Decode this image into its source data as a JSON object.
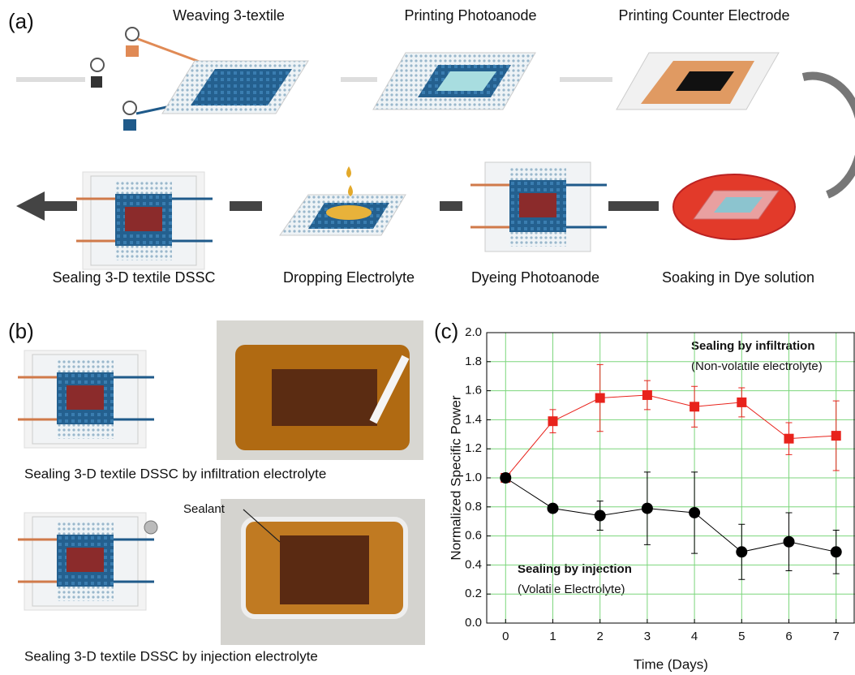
{
  "panels": {
    "a": "(a)",
    "b": "(b)",
    "c": "(c)"
  },
  "steps": [
    "Weaving 3-textile",
    "Printing Photoanode",
    "Printing Counter Electrode",
    "Soaking in Dye solution",
    "Dyeing Photoanode",
    "Dropping Electrolyte",
    "Sealing 3-D textile DSSC"
  ],
  "panel_b": {
    "captions": [
      "Sealing 3-D textile DSSC by infiltration electrolyte",
      "Sealing 3-D textile DSSC by injection electrolyte"
    ],
    "sealant": "Sealant"
  },
  "chart_data": {
    "type": "line",
    "xlabel": "Time (Days)",
    "ylabel": "Normalized Specific Power",
    "x": [
      0,
      1,
      2,
      3,
      4,
      5,
      6,
      7
    ],
    "xlim": [
      -0.4,
      7.4
    ],
    "xticks": [
      0,
      1,
      2,
      3,
      4,
      5,
      6,
      7
    ],
    "ylim": [
      0,
      2
    ],
    "yticks": [
      {
        "value": 0,
        "label": "0.0"
      },
      {
        "value": 0.2,
        "label": "0.2"
      },
      {
        "value": 0.4,
        "label": "0.4"
      },
      {
        "value": 0.6,
        "label": "0.6"
      },
      {
        "value": 0.8,
        "label": "0.8"
      },
      {
        "value": 1,
        "label": "1.0"
      },
      {
        "value": 1.2,
        "label": "1.2"
      },
      {
        "value": 1.4,
        "label": "1.4"
      },
      {
        "value": 1.6,
        "label": "1.6"
      },
      {
        "value": 1.8,
        "label": "1.8"
      },
      {
        "value": 2,
        "label": "2.0"
      }
    ],
    "grid": true,
    "grid_color": "#7cd67c",
    "series": [
      {
        "name": "Sealing by infiltration",
        "color": "#e8231c",
        "marker": "square",
        "values": [
          1.0,
          1.39,
          1.55,
          1.57,
          1.49,
          1.52,
          1.27,
          1.29
        ],
        "errors": [
          0.01,
          0.08,
          0.23,
          0.1,
          0.14,
          0.1,
          0.11,
          0.24
        ]
      },
      {
        "name": "Sealing by injection",
        "color": "#000000",
        "marker": "circle",
        "values": [
          1.0,
          0.79,
          0.74,
          0.79,
          0.76,
          0.49,
          0.56,
          0.49
        ],
        "errors": [
          0.01,
          0.02,
          0.1,
          0.25,
          0.28,
          0.19,
          0.2,
          0.15
        ]
      }
    ],
    "annotations": [
      "(Non-volatile electrolyte)",
      "(Volatile Electrolyte)"
    ]
  }
}
